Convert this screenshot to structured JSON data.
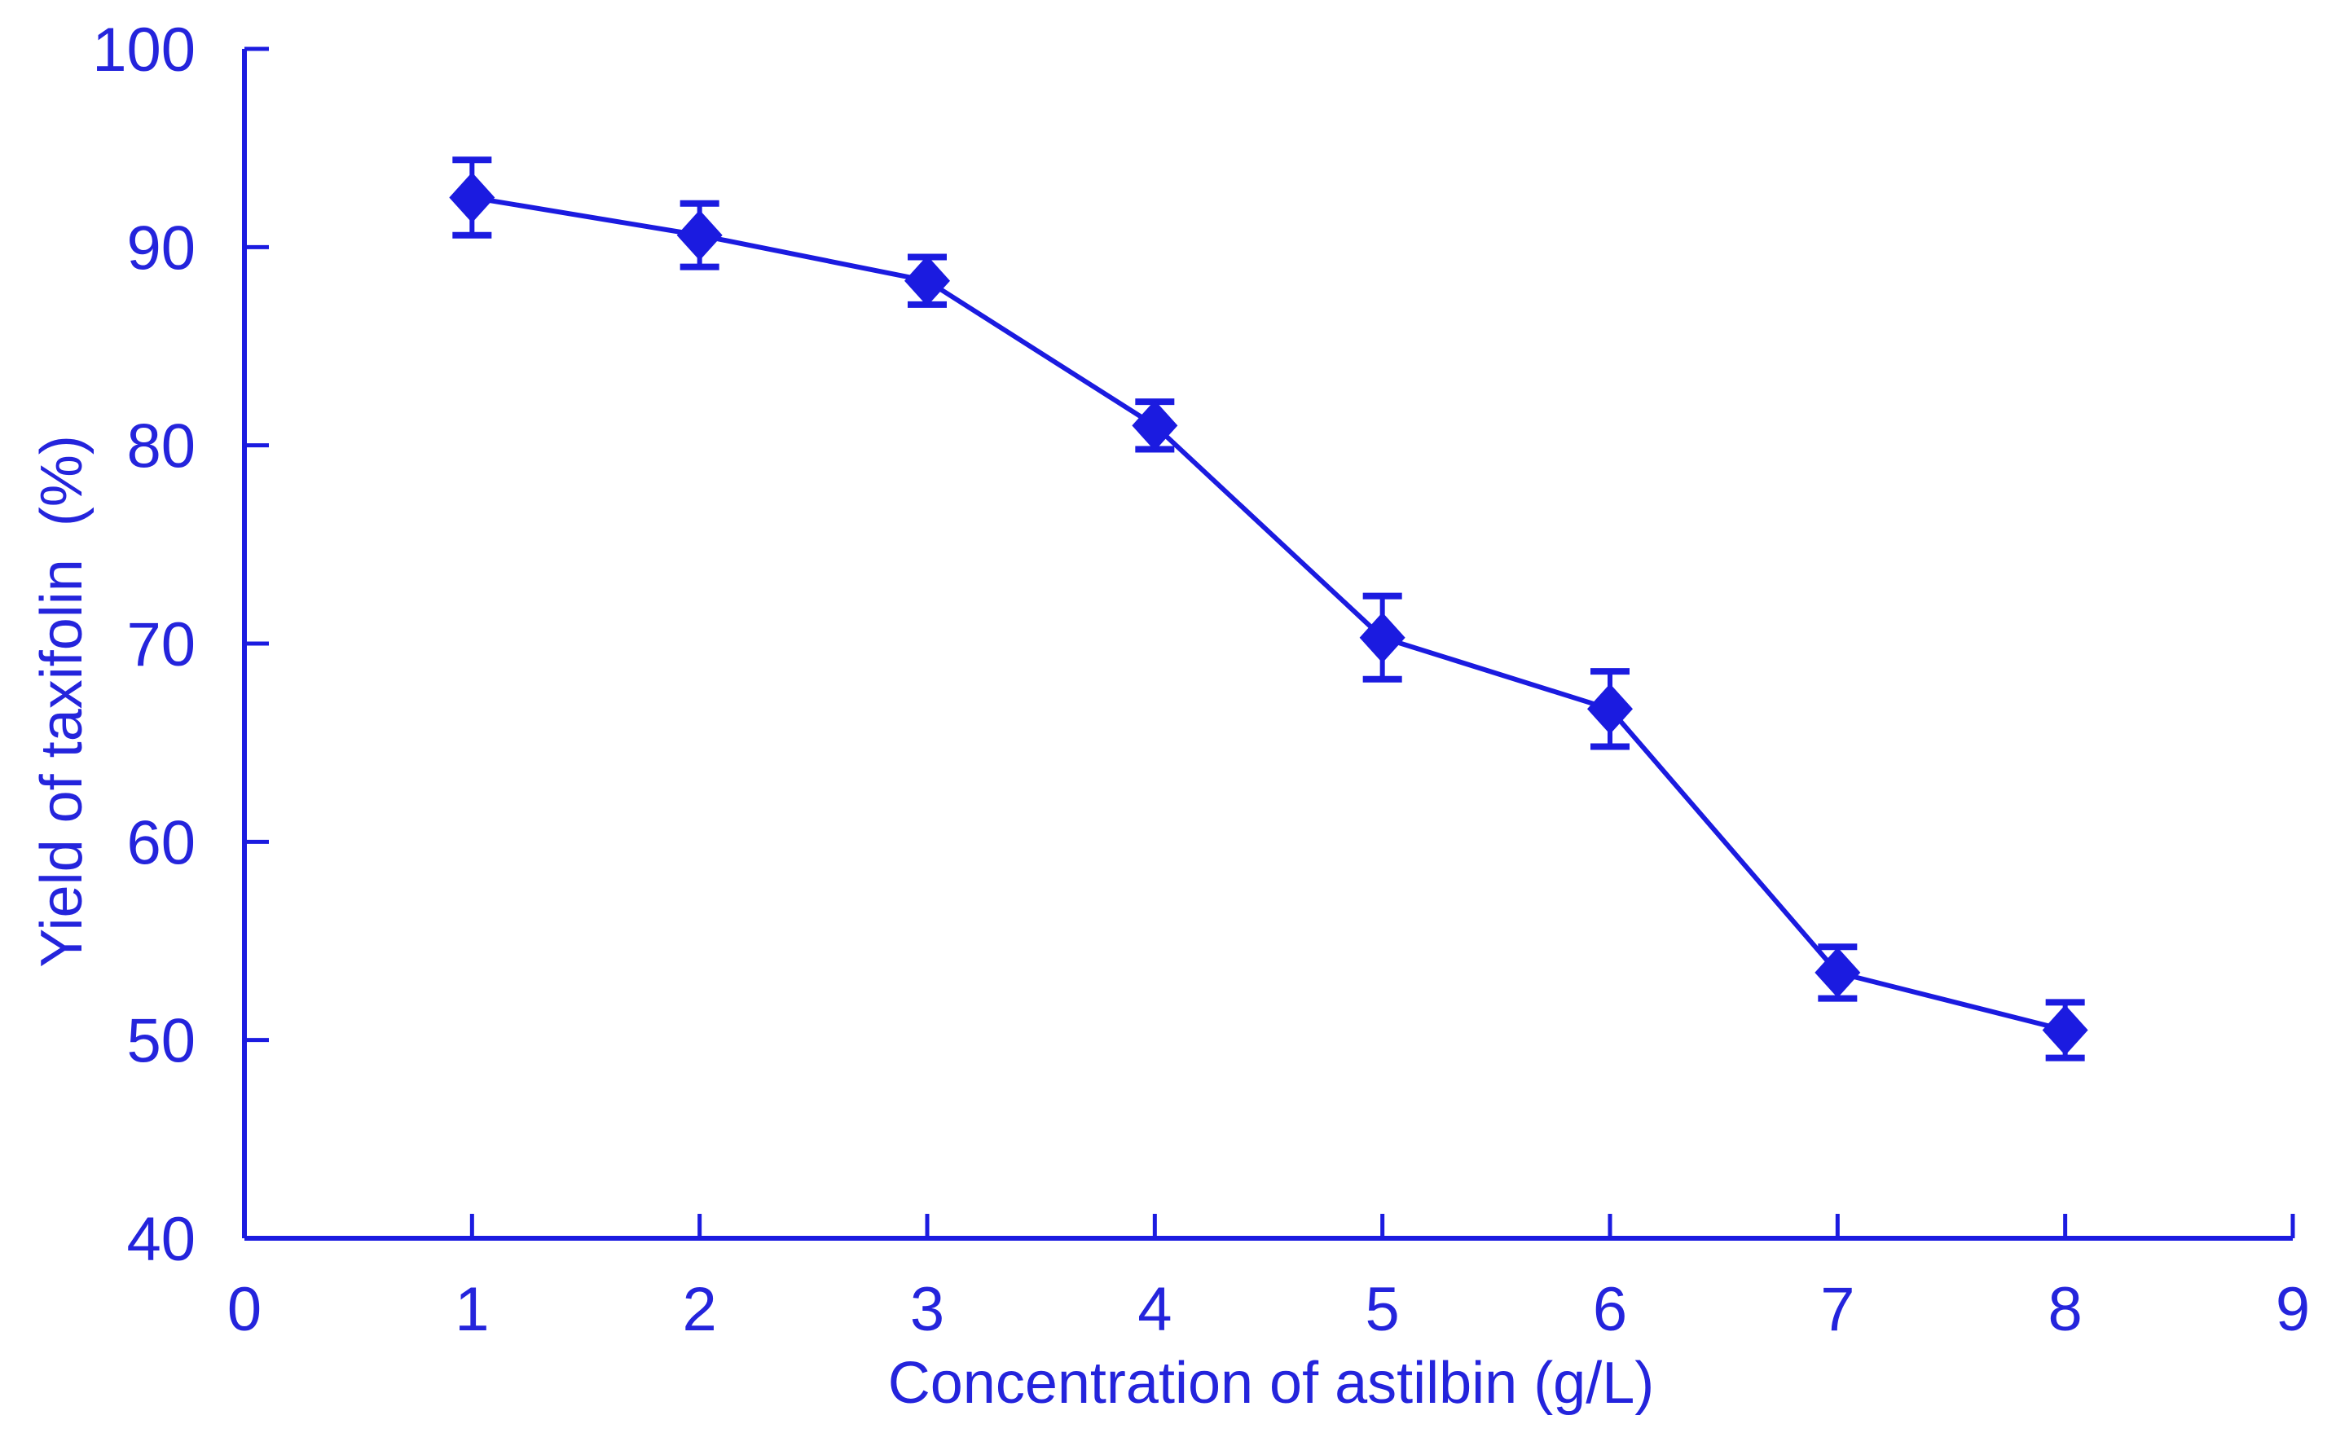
{
  "page": {
    "background_color": "#ffffff"
  },
  "chart_data": {
    "type": "line",
    "title": "",
    "xlabel": "Concentration of astilbin (g/L)",
    "ylabel": "Yield of taxifolin  (%)",
    "x": [
      1,
      2,
      3,
      4,
      5,
      6,
      7,
      8
    ],
    "series": [
      {
        "name": "Yield of taxifolin",
        "values": [
          92.5,
          90.6,
          88.3,
          81.0,
          70.3,
          66.7,
          53.4,
          50.5
        ],
        "error_bars": [
          1.9,
          1.6,
          1.2,
          1.2,
          2.1,
          1.9,
          1.3,
          1.4
        ],
        "marker": "diamond",
        "color": "#1b1be0"
      }
    ],
    "xlim": [
      0,
      9
    ],
    "ylim": [
      40,
      100
    ],
    "x_ticks": [
      0,
      1,
      2,
      3,
      4,
      5,
      6,
      7,
      8,
      9
    ],
    "y_ticks": [
      40,
      50,
      60,
      70,
      80,
      90,
      100
    ],
    "grid": false,
    "legend": "none",
    "axis_color": "#1b1be0",
    "text_color": "#2424dc"
  }
}
